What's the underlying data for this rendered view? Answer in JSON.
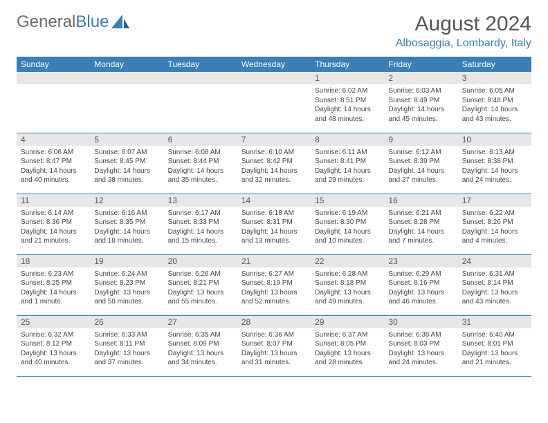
{
  "logo": {
    "text1": "General",
    "text2": "Blue"
  },
  "title": "August 2024",
  "location": "Albosaggia, Lombardy, Italy",
  "colors": {
    "header_bg": "#3a7fb8",
    "header_text": "#ffffff",
    "daynum_bg": "#e7e7e7",
    "border": "#3a7fb8",
    "title_color": "#555555",
    "location_color": "#3a7fb8",
    "logo_gray": "#6a6a6a"
  },
  "weekdays": [
    "Sunday",
    "Monday",
    "Tuesday",
    "Wednesday",
    "Thursday",
    "Friday",
    "Saturday"
  ],
  "grid": [
    [
      {
        "empty": true
      },
      {
        "empty": true
      },
      {
        "empty": true
      },
      {
        "empty": true
      },
      {
        "day": "1",
        "sunrise": "Sunrise: 6:02 AM",
        "sunset": "Sunset: 8:51 PM",
        "daylight": "Daylight: 14 hours and 48 minutes."
      },
      {
        "day": "2",
        "sunrise": "Sunrise: 6:03 AM",
        "sunset": "Sunset: 8:49 PM",
        "daylight": "Daylight: 14 hours and 45 minutes."
      },
      {
        "day": "3",
        "sunrise": "Sunrise: 6:05 AM",
        "sunset": "Sunset: 8:48 PM",
        "daylight": "Daylight: 14 hours and 43 minutes."
      }
    ],
    [
      {
        "day": "4",
        "sunrise": "Sunrise: 6:06 AM",
        "sunset": "Sunset: 8:47 PM",
        "daylight": "Daylight: 14 hours and 40 minutes."
      },
      {
        "day": "5",
        "sunrise": "Sunrise: 6:07 AM",
        "sunset": "Sunset: 8:45 PM",
        "daylight": "Daylight: 14 hours and 38 minutes."
      },
      {
        "day": "6",
        "sunrise": "Sunrise: 6:08 AM",
        "sunset": "Sunset: 8:44 PM",
        "daylight": "Daylight: 14 hours and 35 minutes."
      },
      {
        "day": "7",
        "sunrise": "Sunrise: 6:10 AM",
        "sunset": "Sunset: 8:42 PM",
        "daylight": "Daylight: 14 hours and 32 minutes."
      },
      {
        "day": "8",
        "sunrise": "Sunrise: 6:11 AM",
        "sunset": "Sunset: 8:41 PM",
        "daylight": "Daylight: 14 hours and 29 minutes."
      },
      {
        "day": "9",
        "sunrise": "Sunrise: 6:12 AM",
        "sunset": "Sunset: 8:39 PM",
        "daylight": "Daylight: 14 hours and 27 minutes."
      },
      {
        "day": "10",
        "sunrise": "Sunrise: 6:13 AM",
        "sunset": "Sunset: 8:38 PM",
        "daylight": "Daylight: 14 hours and 24 minutes."
      }
    ],
    [
      {
        "day": "11",
        "sunrise": "Sunrise: 6:14 AM",
        "sunset": "Sunset: 8:36 PM",
        "daylight": "Daylight: 14 hours and 21 minutes."
      },
      {
        "day": "12",
        "sunrise": "Sunrise: 6:16 AM",
        "sunset": "Sunset: 8:35 PM",
        "daylight": "Daylight: 14 hours and 18 minutes."
      },
      {
        "day": "13",
        "sunrise": "Sunrise: 6:17 AM",
        "sunset": "Sunset: 8:33 PM",
        "daylight": "Daylight: 14 hours and 15 minutes."
      },
      {
        "day": "14",
        "sunrise": "Sunrise: 6:18 AM",
        "sunset": "Sunset: 8:31 PM",
        "daylight": "Daylight: 14 hours and 13 minutes."
      },
      {
        "day": "15",
        "sunrise": "Sunrise: 6:19 AM",
        "sunset": "Sunset: 8:30 PM",
        "daylight": "Daylight: 14 hours and 10 minutes."
      },
      {
        "day": "16",
        "sunrise": "Sunrise: 6:21 AM",
        "sunset": "Sunset: 8:28 PM",
        "daylight": "Daylight: 14 hours and 7 minutes."
      },
      {
        "day": "17",
        "sunrise": "Sunrise: 6:22 AM",
        "sunset": "Sunset: 8:26 PM",
        "daylight": "Daylight: 14 hours and 4 minutes."
      }
    ],
    [
      {
        "day": "18",
        "sunrise": "Sunrise: 6:23 AM",
        "sunset": "Sunset: 8:25 PM",
        "daylight": "Daylight: 14 hours and 1 minute."
      },
      {
        "day": "19",
        "sunrise": "Sunrise: 6:24 AM",
        "sunset": "Sunset: 8:23 PM",
        "daylight": "Daylight: 13 hours and 58 minutes."
      },
      {
        "day": "20",
        "sunrise": "Sunrise: 6:26 AM",
        "sunset": "Sunset: 8:21 PM",
        "daylight": "Daylight: 13 hours and 55 minutes."
      },
      {
        "day": "21",
        "sunrise": "Sunrise: 6:27 AM",
        "sunset": "Sunset: 8:19 PM",
        "daylight": "Daylight: 13 hours and 52 minutes."
      },
      {
        "day": "22",
        "sunrise": "Sunrise: 6:28 AM",
        "sunset": "Sunset: 8:18 PM",
        "daylight": "Daylight: 13 hours and 49 minutes."
      },
      {
        "day": "23",
        "sunrise": "Sunrise: 6:29 AM",
        "sunset": "Sunset: 8:16 PM",
        "daylight": "Daylight: 13 hours and 46 minutes."
      },
      {
        "day": "24",
        "sunrise": "Sunrise: 6:31 AM",
        "sunset": "Sunset: 8:14 PM",
        "daylight": "Daylight: 13 hours and 43 minutes."
      }
    ],
    [
      {
        "day": "25",
        "sunrise": "Sunrise: 6:32 AM",
        "sunset": "Sunset: 8:12 PM",
        "daylight": "Daylight: 13 hours and 40 minutes."
      },
      {
        "day": "26",
        "sunrise": "Sunrise: 6:33 AM",
        "sunset": "Sunset: 8:11 PM",
        "daylight": "Daylight: 13 hours and 37 minutes."
      },
      {
        "day": "27",
        "sunrise": "Sunrise: 6:35 AM",
        "sunset": "Sunset: 8:09 PM",
        "daylight": "Daylight: 13 hours and 34 minutes."
      },
      {
        "day": "28",
        "sunrise": "Sunrise: 6:36 AM",
        "sunset": "Sunset: 8:07 PM",
        "daylight": "Daylight: 13 hours and 31 minutes."
      },
      {
        "day": "29",
        "sunrise": "Sunrise: 6:37 AM",
        "sunset": "Sunset: 8:05 PM",
        "daylight": "Daylight: 13 hours and 28 minutes."
      },
      {
        "day": "30",
        "sunrise": "Sunrise: 6:38 AM",
        "sunset": "Sunset: 8:03 PM",
        "daylight": "Daylight: 13 hours and 24 minutes."
      },
      {
        "day": "31",
        "sunrise": "Sunrise: 6:40 AM",
        "sunset": "Sunset: 8:01 PM",
        "daylight": "Daylight: 13 hours and 21 minutes."
      }
    ]
  ]
}
